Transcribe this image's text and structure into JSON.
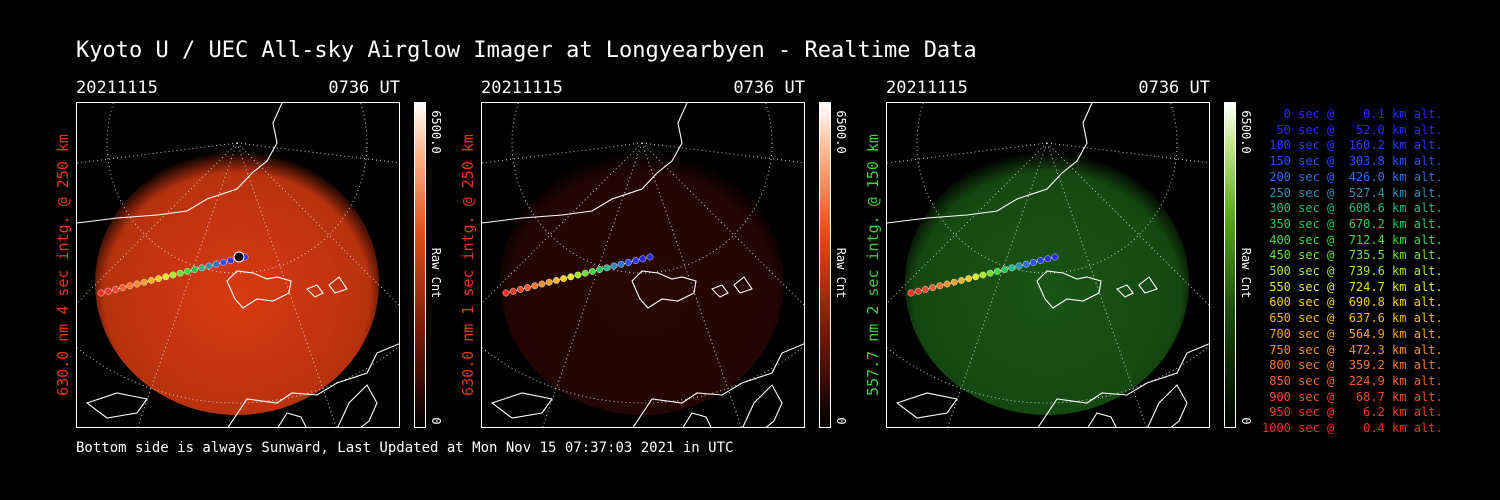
{
  "title": "Kyoto U / UEC All-sky Airglow Imager at Longyearbyen - Realtime Data",
  "footer": "Bottom side is always Sunward, Last Updated at Mon Nov 15 07:37:03 2021 in UTC",
  "panels": [
    {
      "date": "20211115",
      "time": "0736 UT",
      "ylabel": "630.0 nm 4 sec intg. @ 250 km",
      "ylabel_color": "#e8361f",
      "cb_max": "6500.0",
      "cb_unit": "Raw Cnt",
      "cb_min": "0",
      "glow_color": "#d83a10",
      "glow_intensity": 1.0
    },
    {
      "date": "20211115",
      "time": "0736 UT",
      "ylabel": "630.0 nm 1 sec intg. @ 250 km",
      "ylabel_color": "#e8361f",
      "cb_max": "6500.0",
      "cb_unit": "Raw Cnt",
      "cb_min": "0",
      "glow_color": "#4a0c06",
      "glow_intensity": 0.55
    },
    {
      "date": "20211115",
      "time": "0736 UT",
      "ylabel": "557.7 nm 2 sec intg. @ 150 km",
      "ylabel_color": "#3fcf3f",
      "cb_max": "6500.0",
      "cb_unit": "Raw Cnt",
      "cb_min": "0",
      "glow_color": "#1f6a18",
      "glow_intensity": 0.8
    }
  ],
  "legend": [
    {
      "text": "   0 sec @    0.1 km alt.",
      "color": "#2a2aff"
    },
    {
      "text": "  50 sec @   52.0 km alt.",
      "color": "#2a2aff"
    },
    {
      "text": " 100 sec @  160.2 km alt.",
      "color": "#2a3aff"
    },
    {
      "text": " 150 sec @  303.8 km alt.",
      "color": "#2a50ff"
    },
    {
      "text": " 200 sec @  426.0 km alt.",
      "color": "#2a70e8"
    },
    {
      "text": " 250 sec @  527.4 km alt.",
      "color": "#2a90b8"
    },
    {
      "text": " 300 sec @  608.6 km alt.",
      "color": "#22b888"
    },
    {
      "text": " 350 sec @  670.2 km alt.",
      "color": "#28c858"
    },
    {
      "text": " 400 sec @  712.4 km alt.",
      "color": "#40d840"
    },
    {
      "text": " 450 sec @  735.5 km alt.",
      "color": "#70e030"
    },
    {
      "text": " 500 sec @  739.6 km alt.",
      "color": "#a8e828"
    },
    {
      "text": " 550 sec @  724.7 km alt.",
      "color": "#e0e828"
    },
    {
      "text": " 600 sec @  690.8 km alt.",
      "color": "#f0d020"
    },
    {
      "text": " 650 sec @  637.6 km alt.",
      "color": "#f0b828"
    },
    {
      "text": " 700 sec @  564.9 km alt.",
      "color": "#f0a030"
    },
    {
      "text": " 750 sec @  472.3 km alt.",
      "color": "#f09030"
    },
    {
      "text": " 800 sec @  359.2 km alt.",
      "color": "#f07830"
    },
    {
      "text": " 850 sec @  224.9 km alt.",
      "color": "#f06030"
    },
    {
      "text": " 900 sec @   68.7 km alt.",
      "color": "#f04830"
    },
    {
      "text": " 950 sec @    6.2 km alt.",
      "color": "#f03828"
    },
    {
      "text": "1000 sec @    0.4 km alt.",
      "color": "#f03020"
    }
  ]
}
